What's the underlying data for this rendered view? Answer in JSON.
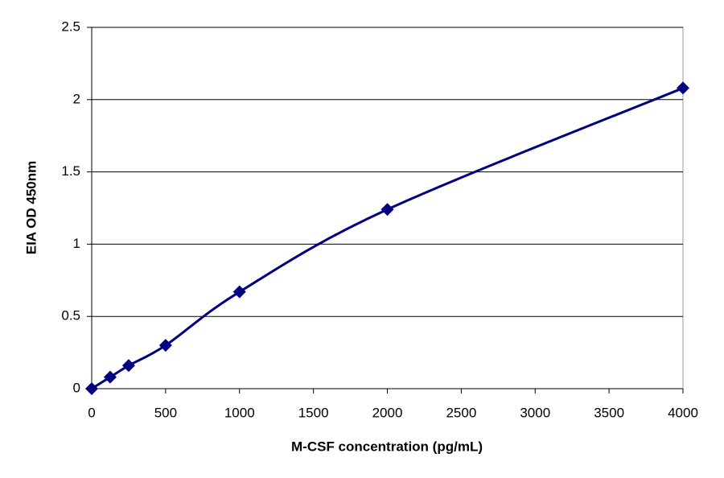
{
  "chart_data": {
    "type": "line",
    "xlabel": "M-CSF concentration (pg/mL)",
    "ylabel": "EIA OD 450nm",
    "x": [
      0,
      125,
      250,
      500,
      1000,
      2000,
      4000
    ],
    "values": [
      0,
      0.08,
      0.16,
      0.3,
      0.67,
      1.24,
      2.08
    ],
    "color": "#000080",
    "marker": "diamond",
    "smooth": true,
    "xlim": [
      0,
      4000
    ],
    "xticks": [
      0,
      500,
      1000,
      1500,
      2000,
      2500,
      3000,
      3500,
      4000
    ],
    "ylim": [
      0,
      2.5
    ],
    "yticks": [
      0,
      0.5,
      1,
      1.5,
      2,
      2.5
    ],
    "grid": true
  }
}
